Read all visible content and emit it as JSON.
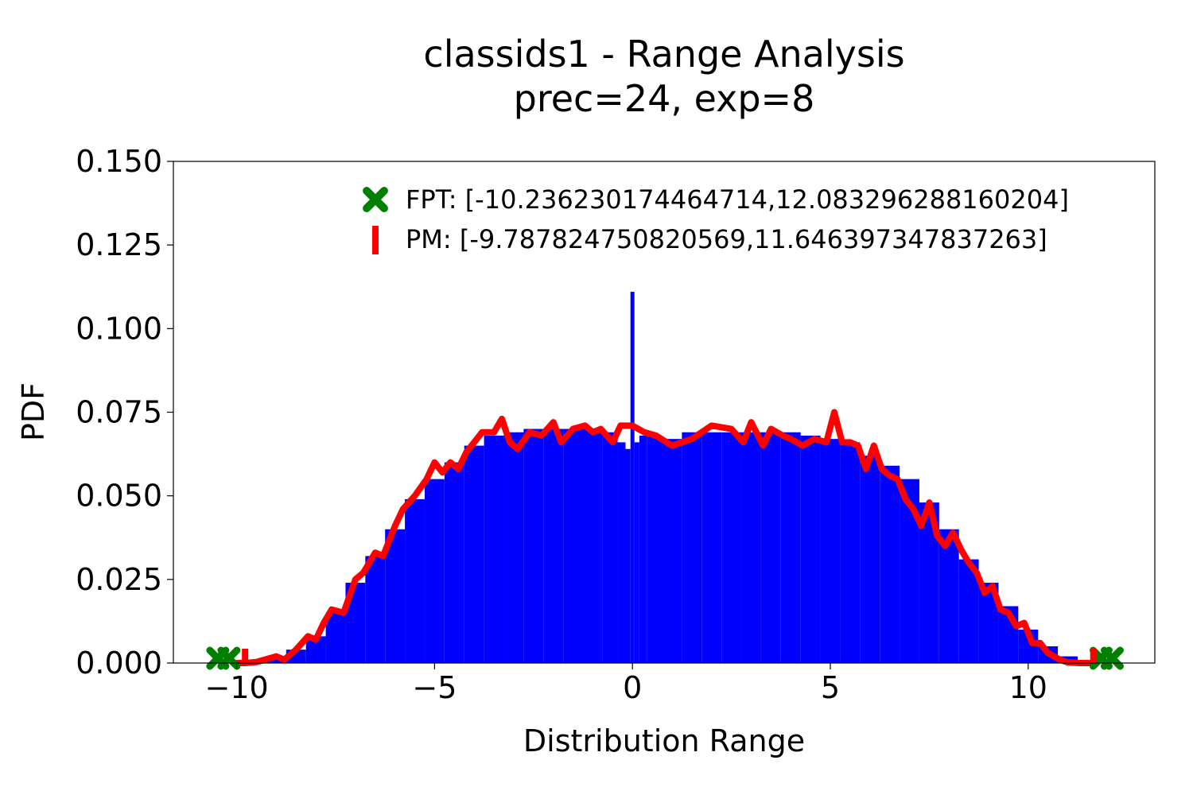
{
  "chart_data": {
    "type": "bar",
    "title": "classids1 - Range Analysis",
    "subtitle": "prec=24, exp=8",
    "xlabel": "Distribution Range",
    "ylabel": "PDF",
    "xlim": [
      -11.6,
      13.2
    ],
    "ylim": [
      0,
      0.15
    ],
    "xticks": [
      -10,
      -5,
      0,
      5,
      10
    ],
    "xtick_labels": [
      "−10",
      "−5",
      "0",
      "5",
      "10"
    ],
    "yticks": [
      0,
      0.025,
      0.05,
      0.075,
      0.1,
      0.125,
      0.15
    ],
    "ytick_labels": [
      "0.000",
      "0.025",
      "0.050",
      "0.075",
      "0.100",
      "0.125",
      "0.150"
    ],
    "grid": false,
    "legend_position": "top-right",
    "histogram": {
      "name": "histogram",
      "color": "#0000ff",
      "x": [
        -9.5,
        -9.0,
        -8.5,
        -8.0,
        -7.5,
        -7.0,
        -6.5,
        -6.0,
        -5.5,
        -5.0,
        -4.5,
        -4.0,
        -3.5,
        -3.0,
        -2.5,
        -2.0,
        -1.5,
        -1.0,
        -0.5,
        -0.25,
        -0.1,
        0.0,
        0.1,
        0.25,
        0.5,
        1.0,
        1.5,
        2.0,
        2.5,
        3.0,
        3.5,
        4.0,
        4.5,
        5.0,
        5.5,
        6.0,
        6.5,
        7.0,
        7.5,
        8.0,
        8.5,
        9.0,
        9.5,
        10.0,
        10.5,
        11.0,
        11.5
      ],
      "values": [
        0.0005,
        0.0015,
        0.004,
        0.008,
        0.015,
        0.024,
        0.032,
        0.04,
        0.049,
        0.055,
        0.06,
        0.065,
        0.068,
        0.069,
        0.07,
        0.07,
        0.07,
        0.07,
        0.069,
        0.066,
        0.064,
        0.111,
        0.066,
        0.068,
        0.068,
        0.067,
        0.069,
        0.069,
        0.069,
        0.069,
        0.069,
        0.069,
        0.068,
        0.067,
        0.066,
        0.062,
        0.059,
        0.055,
        0.048,
        0.04,
        0.031,
        0.024,
        0.017,
        0.01,
        0.005,
        0.002,
        0.0005
      ]
    },
    "kde": {
      "name": "kde",
      "color": "#ff0000",
      "x": [
        -10.0,
        -9.8,
        -9.5,
        -9.0,
        -8.8,
        -8.5,
        -8.2,
        -8.0,
        -7.8,
        -7.6,
        -7.3,
        -7.0,
        -6.8,
        -6.5,
        -6.3,
        -6.0,
        -5.8,
        -5.5,
        -5.2,
        -5.0,
        -4.8,
        -4.6,
        -4.4,
        -4.2,
        -4.0,
        -3.8,
        -3.5,
        -3.3,
        -3.1,
        -2.9,
        -2.6,
        -2.3,
        -2.0,
        -1.8,
        -1.5,
        -1.2,
        -1.0,
        -0.8,
        -0.5,
        -0.3,
        0.0,
        0.3,
        0.6,
        1.0,
        1.5,
        2.0,
        2.5,
        2.8,
        3.0,
        3.3,
        3.5,
        3.8,
        4.0,
        4.3,
        4.6,
        4.9,
        5.1,
        5.3,
        5.5,
        5.7,
        5.9,
        6.1,
        6.3,
        6.5,
        6.7,
        6.9,
        7.1,
        7.3,
        7.5,
        7.7,
        7.9,
        8.1,
        8.3,
        8.5,
        8.7,
        8.9,
        9.1,
        9.3,
        9.5,
        9.7,
        9.9,
        10.1,
        10.3,
        10.5,
        10.8,
        11.0,
        11.3,
        11.65
      ],
      "values": [
        0.0,
        0.0,
        0.0003,
        0.002,
        0.001,
        0.004,
        0.008,
        0.007,
        0.012,
        0.016,
        0.015,
        0.025,
        0.027,
        0.033,
        0.032,
        0.041,
        0.046,
        0.05,
        0.055,
        0.06,
        0.057,
        0.06,
        0.058,
        0.063,
        0.066,
        0.069,
        0.069,
        0.073,
        0.066,
        0.064,
        0.069,
        0.068,
        0.072,
        0.066,
        0.07,
        0.071,
        0.069,
        0.07,
        0.066,
        0.071,
        0.071,
        0.069,
        0.068,
        0.065,
        0.067,
        0.071,
        0.07,
        0.066,
        0.072,
        0.065,
        0.07,
        0.068,
        0.067,
        0.065,
        0.067,
        0.066,
        0.075,
        0.066,
        0.066,
        0.065,
        0.058,
        0.065,
        0.058,
        0.056,
        0.055,
        0.049,
        0.046,
        0.041,
        0.048,
        0.038,
        0.035,
        0.039,
        0.034,
        0.03,
        0.027,
        0.021,
        0.023,
        0.016,
        0.015,
        0.011,
        0.012,
        0.006,
        0.006,
        0.003,
        0.001,
        0.0002,
        0.0,
        0.0
      ]
    },
    "legend": [
      {
        "label": "FPT: [-10.236230174464714,12.083296288160204]",
        "marker": "X",
        "color": "#008000"
      },
      {
        "label": "PM: [-9.787824750820569,11.646397347837263]",
        "marker": "|",
        "color": "#ff0000"
      }
    ],
    "markers": [
      {
        "series": "FPT",
        "x": -10.236230174464714,
        "y": 0.0,
        "color": "#008000"
      },
      {
        "series": "FPT",
        "x": 12.083296288160204,
        "y": 0.0,
        "color": "#008000"
      },
      {
        "series": "PM",
        "x": -9.787824750820569,
        "y": 0.0,
        "color": "#ff0000"
      },
      {
        "series": "PM",
        "x": 11.646397347837263,
        "y": 0.0,
        "color": "#ff0000"
      }
    ]
  }
}
